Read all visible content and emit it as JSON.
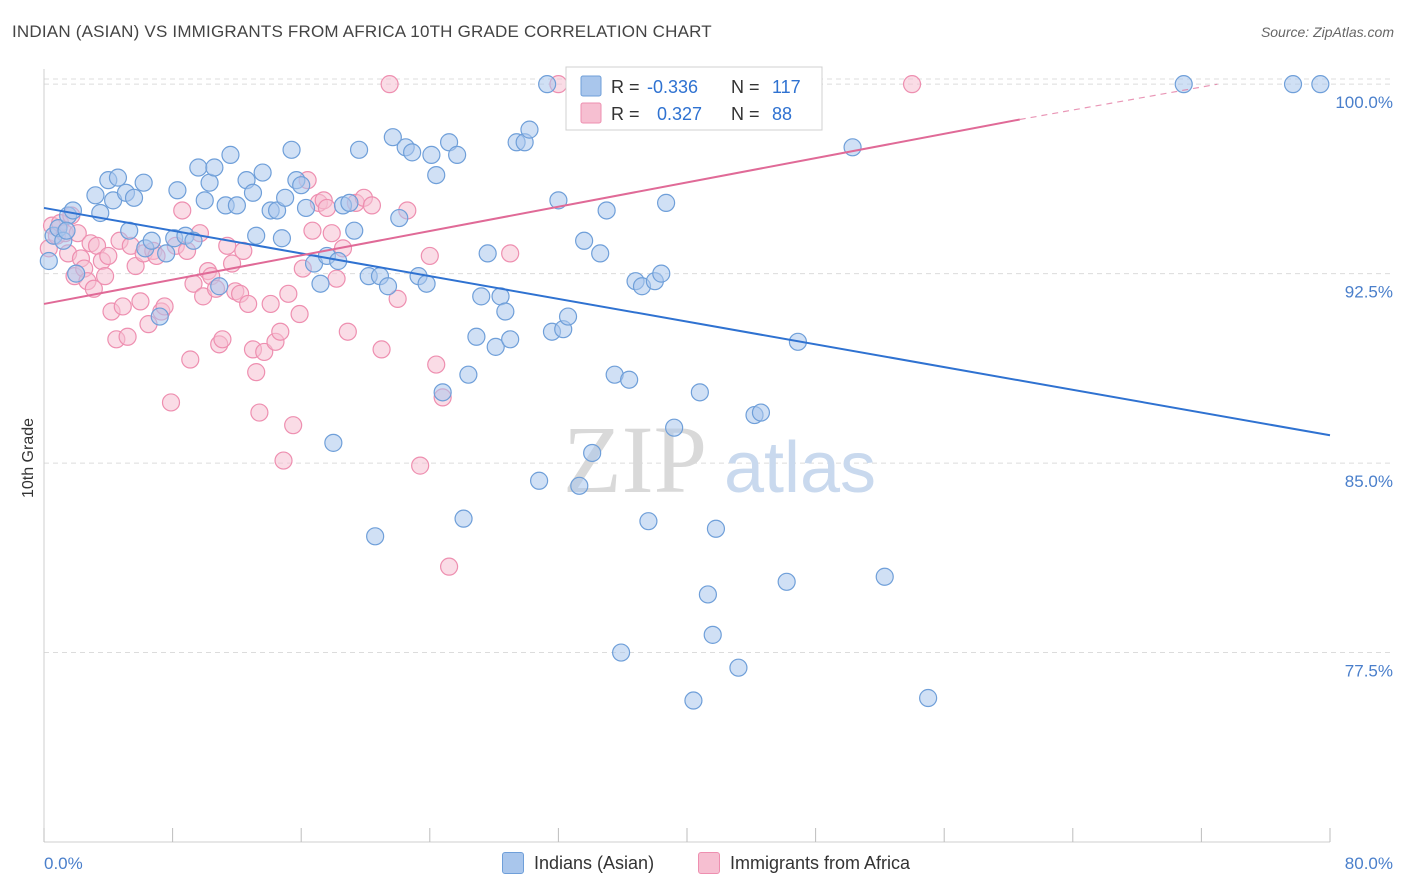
{
  "title": "INDIAN (ASIAN) VS IMMIGRANTS FROM AFRICA 10TH GRADE CORRELATION CHART",
  "source": "Source: ZipAtlas.com",
  "watermark": {
    "zip": "ZIP",
    "atlas": "atlas"
  },
  "colors": {
    "blue_fill": "#a9c6ec",
    "blue_stroke": "#6f9fd9",
    "blue_line": "#2f72d1",
    "pink_fill": "#f6bfd1",
    "pink_stroke": "#ee8fb0",
    "pink_line": "#e06a97",
    "value_text": "#2f72d1",
    "grid": "#dcdcdc"
  },
  "legend": {
    "blue": {
      "r_label": "R =",
      "r_value": "-0.336",
      "n_label": "N =",
      "n_value": "117"
    },
    "pink": {
      "r_label": "R =",
      "r_value": "0.327",
      "n_label": "N =",
      "n_value": "88"
    }
  },
  "bottom_legend": {
    "blue": "Indians (Asian)",
    "pink": "Immigrants from Africa"
  },
  "chart_data": {
    "type": "scatter",
    "ylabel": "10th Grade",
    "xlabel": "",
    "x_tick_labels": [
      "0.0%",
      "80.0%"
    ],
    "y_tick_labels": [
      "100.0%",
      "92.5%",
      "85.0%",
      "77.5%"
    ],
    "y_ticks": [
      100.0,
      92.5,
      85.0,
      77.5
    ],
    "xlim": [
      0,
      80
    ],
    "ylim": [
      70.0,
      100.6
    ],
    "grid": true,
    "series": [
      {
        "name": "Indians (Asian)",
        "r": -0.336,
        "n": 117,
        "trend": {
          "x0": 0,
          "y0": 95.1,
          "x1": 80,
          "y1": 86.1
        },
        "points": [
          [
            0.3,
            93.0
          ],
          [
            0.6,
            94.0
          ],
          [
            0.9,
            94.3
          ],
          [
            1.2,
            93.8
          ],
          [
            1.5,
            94.8
          ],
          [
            1.4,
            94.2
          ],
          [
            1.8,
            95.0
          ],
          [
            2.0,
            92.5
          ],
          [
            3.2,
            95.6
          ],
          [
            3.5,
            94.9
          ],
          [
            4.0,
            96.2
          ],
          [
            4.3,
            95.4
          ],
          [
            4.6,
            96.3
          ],
          [
            5.1,
            95.7
          ],
          [
            5.3,
            94.2
          ],
          [
            5.6,
            95.5
          ],
          [
            6.2,
            96.1
          ],
          [
            6.3,
            93.5
          ],
          [
            6.7,
            93.8
          ],
          [
            7.2,
            90.8
          ],
          [
            7.6,
            93.3
          ],
          [
            8.1,
            93.9
          ],
          [
            8.3,
            95.8
          ],
          [
            8.8,
            94.0
          ],
          [
            9.3,
            93.8
          ],
          [
            9.6,
            96.7
          ],
          [
            10.0,
            95.4
          ],
          [
            10.3,
            96.1
          ],
          [
            10.6,
            96.7
          ],
          [
            10.9,
            92.0
          ],
          [
            11.3,
            95.2
          ],
          [
            11.6,
            97.2
          ],
          [
            12.0,
            95.2
          ],
          [
            12.6,
            96.2
          ],
          [
            13.0,
            95.7
          ],
          [
            13.2,
            94.0
          ],
          [
            13.6,
            96.5
          ],
          [
            14.1,
            95.0
          ],
          [
            14.5,
            95.0
          ],
          [
            14.8,
            93.9
          ],
          [
            15.0,
            95.5
          ],
          [
            15.4,
            97.4
          ],
          [
            15.7,
            96.2
          ],
          [
            16.0,
            96.0
          ],
          [
            16.3,
            95.1
          ],
          [
            16.8,
            92.9
          ],
          [
            17.2,
            92.1
          ],
          [
            17.6,
            93.2
          ],
          [
            18.0,
            85.8
          ],
          [
            18.6,
            95.2
          ],
          [
            19.0,
            95.3
          ],
          [
            19.3,
            94.2
          ],
          [
            19.6,
            97.4
          ],
          [
            20.2,
            92.4
          ],
          [
            20.6,
            82.1
          ],
          [
            20.9,
            92.4
          ],
          [
            21.4,
            92.0
          ],
          [
            21.7,
            97.9
          ],
          [
            22.1,
            94.7
          ],
          [
            22.5,
            97.5
          ],
          [
            22.9,
            97.3
          ],
          [
            23.3,
            92.4
          ],
          [
            23.8,
            92.1
          ],
          [
            24.1,
            97.2
          ],
          [
            24.4,
            96.4
          ],
          [
            24.8,
            87.8
          ],
          [
            25.2,
            97.7
          ],
          [
            25.7,
            97.2
          ],
          [
            26.1,
            82.8
          ],
          [
            26.4,
            88.5
          ],
          [
            26.9,
            90.0
          ],
          [
            27.2,
            91.6
          ],
          [
            27.6,
            93.3
          ],
          [
            28.1,
            89.6
          ],
          [
            28.4,
            91.6
          ],
          [
            28.7,
            91.0
          ],
          [
            29.0,
            89.9
          ],
          [
            29.4,
            97.7
          ],
          [
            29.9,
            97.7
          ],
          [
            30.2,
            98.2
          ],
          [
            30.8,
            84.3
          ],
          [
            31.3,
            100.0
          ],
          [
            31.6,
            90.2
          ],
          [
            32.0,
            95.4
          ],
          [
            32.3,
            90.3
          ],
          [
            32.6,
            90.8
          ],
          [
            33.3,
            84.1
          ],
          [
            33.6,
            93.8
          ],
          [
            34.1,
            85.4
          ],
          [
            34.6,
            93.3
          ],
          [
            35.0,
            95.0
          ],
          [
            35.5,
            88.5
          ],
          [
            35.9,
            77.5
          ],
          [
            36.4,
            88.3
          ],
          [
            36.8,
            92.2
          ],
          [
            37.2,
            92.0
          ],
          [
            37.6,
            82.7
          ],
          [
            38.0,
            92.2
          ],
          [
            38.4,
            92.5
          ],
          [
            38.7,
            95.3
          ],
          [
            39.2,
            86.4
          ],
          [
            40.0,
            100.0
          ],
          [
            40.4,
            75.6
          ],
          [
            40.8,
            87.8
          ],
          [
            41.3,
            79.8
          ],
          [
            41.6,
            78.2
          ],
          [
            41.8,
            82.4
          ],
          [
            43.2,
            76.9
          ],
          [
            44.2,
            86.9
          ],
          [
            44.6,
            87.0
          ],
          [
            46.2,
            80.3
          ],
          [
            46.9,
            89.8
          ],
          [
            50.3,
            97.5
          ],
          [
            52.3,
            80.5
          ],
          [
            55.0,
            75.7
          ],
          [
            70.9,
            100.0
          ],
          [
            77.7,
            100.0
          ],
          [
            79.4,
            100.0
          ],
          [
            18.3,
            93.0
          ]
        ]
      },
      {
        "name": "Immigrants from Africa",
        "r": 0.327,
        "n": 88,
        "trend": {
          "x0": 0,
          "y0": 91.3,
          "x1": 60.7,
          "y1": 98.6,
          "dash_x1": 73.0,
          "dash_y1": 100.0
        },
        "points": [
          [
            0.3,
            93.5
          ],
          [
            0.5,
            94.4
          ],
          [
            0.8,
            94.0
          ],
          [
            1.0,
            94.5
          ],
          [
            1.3,
            94.1
          ],
          [
            1.5,
            93.3
          ],
          [
            1.7,
            94.8
          ],
          [
            1.9,
            92.4
          ],
          [
            2.1,
            94.1
          ],
          [
            2.3,
            93.1
          ],
          [
            2.5,
            92.7
          ],
          [
            2.7,
            92.2
          ],
          [
            2.9,
            93.7
          ],
          [
            3.1,
            91.9
          ],
          [
            3.3,
            93.6
          ],
          [
            3.6,
            93.0
          ],
          [
            3.8,
            92.4
          ],
          [
            4.0,
            93.2
          ],
          [
            4.2,
            91.0
          ],
          [
            4.5,
            89.9
          ],
          [
            4.7,
            93.8
          ],
          [
            4.9,
            91.2
          ],
          [
            5.2,
            90.0
          ],
          [
            5.4,
            93.6
          ],
          [
            5.7,
            92.8
          ],
          [
            6.0,
            91.4
          ],
          [
            6.2,
            93.3
          ],
          [
            6.5,
            90.5
          ],
          [
            6.8,
            93.4
          ],
          [
            7.0,
            93.2
          ],
          [
            7.3,
            91.0
          ],
          [
            7.5,
            91.2
          ],
          [
            7.9,
            87.4
          ],
          [
            8.2,
            93.6
          ],
          [
            8.6,
            95.0
          ],
          [
            8.9,
            93.4
          ],
          [
            9.1,
            89.1
          ],
          [
            9.3,
            92.1
          ],
          [
            9.7,
            94.1
          ],
          [
            9.9,
            91.6
          ],
          [
            10.2,
            92.6
          ],
          [
            10.4,
            92.4
          ],
          [
            10.7,
            91.9
          ],
          [
            10.9,
            89.7
          ],
          [
            11.1,
            89.9
          ],
          [
            11.4,
            93.6
          ],
          [
            11.7,
            92.9
          ],
          [
            11.9,
            91.8
          ],
          [
            12.2,
            91.7
          ],
          [
            12.4,
            93.4
          ],
          [
            12.7,
            91.3
          ],
          [
            13.0,
            89.5
          ],
          [
            13.2,
            88.6
          ],
          [
            13.4,
            87.0
          ],
          [
            13.7,
            89.4
          ],
          [
            14.1,
            91.3
          ],
          [
            14.4,
            89.8
          ],
          [
            14.7,
            90.2
          ],
          [
            14.9,
            85.1
          ],
          [
            15.2,
            91.7
          ],
          [
            15.5,
            86.5
          ],
          [
            15.9,
            90.9
          ],
          [
            16.1,
            92.7
          ],
          [
            16.4,
            96.2
          ],
          [
            16.7,
            94.2
          ],
          [
            17.1,
            95.3
          ],
          [
            17.4,
            95.4
          ],
          [
            17.6,
            95.1
          ],
          [
            17.9,
            94.1
          ],
          [
            18.2,
            92.3
          ],
          [
            18.6,
            93.5
          ],
          [
            18.9,
            90.2
          ],
          [
            19.4,
            95.3
          ],
          [
            19.9,
            95.5
          ],
          [
            20.4,
            95.2
          ],
          [
            21.0,
            89.5
          ],
          [
            21.5,
            100.0
          ],
          [
            22.0,
            91.5
          ],
          [
            22.6,
            95.0
          ],
          [
            23.4,
            84.9
          ],
          [
            24.0,
            93.2
          ],
          [
            24.4,
            88.9
          ],
          [
            24.8,
            87.6
          ],
          [
            25.2,
            80.9
          ],
          [
            29.0,
            93.3
          ],
          [
            32.0,
            100.0
          ],
          [
            45.7,
            100.0
          ],
          [
            54.0,
            100.0
          ]
        ]
      }
    ],
    "legend_placement": "top-center"
  }
}
